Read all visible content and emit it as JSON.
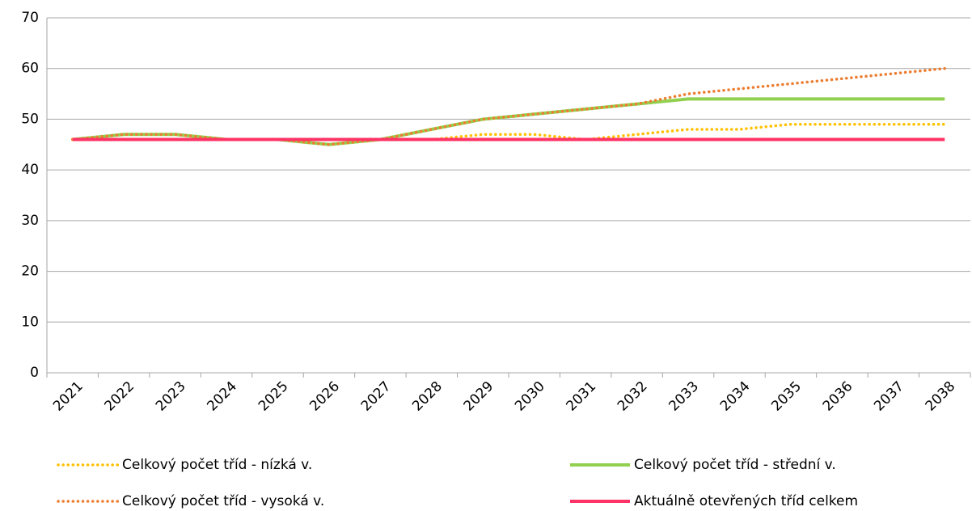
{
  "chart_data": {
    "type": "line",
    "categories": [
      "2021",
      "2022",
      "2023",
      "2024",
      "2025",
      "2026",
      "2027",
      "2028",
      "2029",
      "2030",
      "2031",
      "2032",
      "2033",
      "2034",
      "2035",
      "2036",
      "2037",
      "2038"
    ],
    "series": [
      {
        "name": "Celkový počet tříd - nízká v.",
        "color": "#ffc000",
        "dash": "dotted",
        "values": [
          46,
          47,
          47,
          46,
          46,
          45,
          46,
          46,
          47,
          47,
          46,
          47,
          48,
          48,
          49,
          49,
          49,
          49
        ]
      },
      {
        "name": "Celkový počet tříd - střední v.",
        "color": "#92d050",
        "dash": "solid",
        "values": [
          46,
          47,
          47,
          46,
          46,
          45,
          46,
          48,
          50,
          51,
          52,
          53,
          54,
          54,
          54,
          54,
          54,
          54
        ]
      },
      {
        "name": "Celkový počet tříd - vysoká v.",
        "color": "#ed7d31",
        "dash": "dotted",
        "values": [
          46,
          47,
          47,
          46,
          46,
          45,
          46,
          48,
          50,
          51,
          52,
          53,
          55,
          56,
          57,
          58,
          59,
          60
        ]
      },
      {
        "name": "Aktuálně otevřených tříd celkem",
        "color": "#ff3366",
        "dash": "solid",
        "values": [
          46,
          46,
          46,
          46,
          46,
          46,
          46,
          46,
          46,
          46,
          46,
          46,
          46,
          46,
          46,
          46,
          46,
          46
        ]
      }
    ],
    "ylim": [
      0,
      70
    ],
    "yticks": [
      0,
      10,
      20,
      30,
      40,
      50,
      60,
      70
    ],
    "grid": true,
    "legend": "bottom"
  }
}
